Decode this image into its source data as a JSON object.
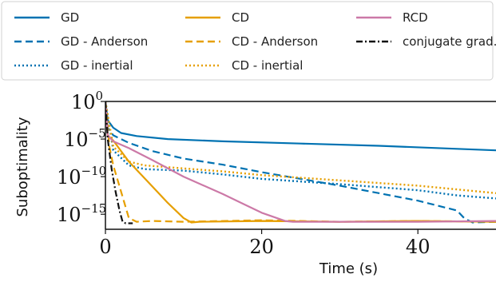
{
  "chart_data": {
    "type": "line",
    "xlabel": "Time (s)",
    "ylabel": "Suboptimality",
    "xlim": [
      0,
      50
    ],
    "ylim_exponent": [
      -17,
      0
    ],
    "yscale": "log",
    "grid": false,
    "legend_position": "top",
    "x_ticks": [
      {
        "value": 0,
        "label": "0"
      },
      {
        "value": 20,
        "label": "20"
      },
      {
        "value": 40,
        "label": "40"
      }
    ],
    "y_ticks": [
      {
        "exponent": 0,
        "base": "10",
        "power": "0"
      },
      {
        "exponent": -5,
        "base": "10",
        "power": "−5"
      },
      {
        "exponent": -10,
        "base": "10",
        "power": "−10"
      },
      {
        "exponent": -15,
        "base": "10",
        "power": "−15"
      }
    ],
    "series": [
      {
        "name": "GD",
        "color": "#0072b2",
        "style": "solid",
        "x": [
          0,
          0.3,
          1,
          2,
          4,
          8,
          15,
          25,
          35,
          45,
          50
        ],
        "y_exp": [
          0,
          -2.5,
          -3.5,
          -4.2,
          -4.6,
          -5.0,
          -5.3,
          -5.6,
          -5.9,
          -6.3,
          -6.5
        ]
      },
      {
        "name": "GD - Anderson",
        "color": "#0072b2",
        "style": "dashed",
        "x": [
          0,
          0.3,
          1,
          3,
          6,
          10,
          15,
          20,
          30,
          40,
          45,
          46,
          47,
          50
        ],
        "y_exp": [
          0,
          -3.5,
          -4.5,
          -5.5,
          -6.6,
          -7.6,
          -8.4,
          -9.4,
          -11.2,
          -13.2,
          -14.5,
          -15.6,
          -16.1,
          -16.0
        ]
      },
      {
        "name": "GD - inertial",
        "color": "#0072b2",
        "style": "dotted",
        "x": [
          0,
          1,
          2,
          3,
          5,
          10,
          15,
          20,
          30,
          40,
          45,
          50
        ],
        "y_exp": [
          0,
          -6.5,
          -7.5,
          -8.5,
          -9.0,
          -9.2,
          -9.7,
          -10.3,
          -11.0,
          -11.8,
          -12.5,
          -12.9
        ]
      },
      {
        "name": "CD",
        "color": "#e69f00",
        "style": "solid",
        "x": [
          0,
          0.3,
          1,
          3,
          6,
          8,
          10,
          11,
          12,
          20,
          30,
          40,
          50
        ],
        "y_exp": [
          0,
          -4.5,
          -5.2,
          -8.0,
          -11.3,
          -13.5,
          -15.5,
          -16.1,
          -16.0,
          -15.9,
          -16.0,
          -15.9,
          -16.0
        ]
      },
      {
        "name": "CD - Anderson",
        "color": "#e69f00",
        "style": "dashed",
        "x": [
          0,
          0.5,
          1,
          2,
          3,
          4,
          6,
          10,
          20,
          30,
          40,
          50
        ],
        "y_exp": [
          0,
          -6,
          -8.5,
          -12,
          -15.5,
          -16.0,
          -15.9,
          -16.0,
          -15.8,
          -16.0,
          -15.9,
          -16.0
        ]
      },
      {
        "name": "CD - inertial",
        "color": "#e69f00",
        "style": "dotted",
        "x": [
          0,
          1,
          2,
          3,
          5,
          10,
          15,
          20,
          30,
          40,
          45,
          50
        ],
        "y_exp": [
          0,
          -6.0,
          -7.0,
          -8.0,
          -8.5,
          -8.9,
          -9.3,
          -9.8,
          -10.5,
          -11.2,
          -11.7,
          -12.2
        ]
      },
      {
        "name": "RCD",
        "color": "#cc79a7",
        "style": "solid",
        "x": [
          0,
          0.3,
          1,
          3,
          6,
          10,
          15,
          20,
          23,
          24,
          30,
          40,
          50
        ],
        "y_exp": [
          0,
          -4.5,
          -5.3,
          -6.2,
          -7.8,
          -10.0,
          -12.3,
          -14.8,
          -15.9,
          -16.0,
          -16.0,
          -16.0,
          -15.9
        ]
      },
      {
        "name": "conjugate grad.",
        "color": "#111111",
        "style": "dashdot",
        "x": [
          0,
          0.3,
          0.8,
          1.3,
          1.8,
          2.2,
          2.6,
          3.5
        ],
        "y_exp": [
          0,
          -5,
          -9,
          -12,
          -14.5,
          -16.0,
          -16.2,
          -16.2
        ]
      }
    ]
  }
}
